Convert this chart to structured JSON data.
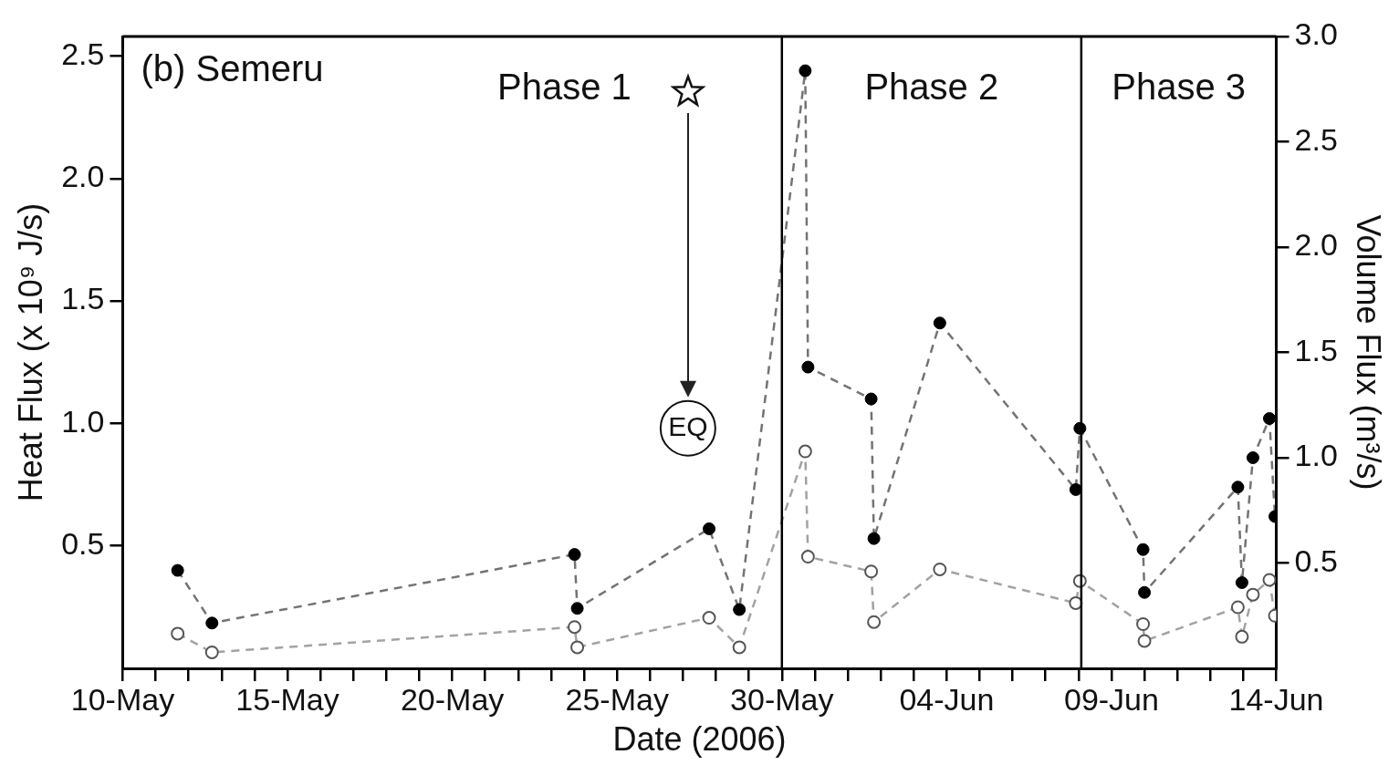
{
  "chart_data": {
    "type": "line",
    "title": "(b) Semeru",
    "xlabel": "Date (2006)",
    "ylabel": "Heat Flux (x 10⁹ J/s)",
    "y2label": "Volume Flux (m³/s)",
    "x": [
      "2006-05-11T16:00",
      "2006-05-12T17:00",
      "2006-05-23T17:00",
      "2006-05-23T19:00",
      "2006-05-27T19:00",
      "2006-05-28T17:00",
      "2006-05-30T17:00",
      "2006-05-30T19:00",
      "2006-06-01T17:00",
      "2006-06-01T19:00",
      "2006-06-03T19:00",
      "2006-06-07T22:00",
      "2006-06-08T01:00",
      "2006-06-09T23:00",
      "2006-06-10T00:00",
      "2006-06-12T20:00",
      "2006-06-12T23:00",
      "2006-06-13T07:00",
      "2006-06-13T19:00",
      "2006-06-13T23:00"
    ],
    "series": [
      {
        "color": "#000000",
        "values": [
          0.4,
          0.185,
          0.465,
          0.245,
          0.57,
          0.24,
          2.44,
          1.23,
          1.1,
          0.53,
          1.41,
          0.73,
          0.98,
          0.485,
          0.31,
          0.74,
          0.35,
          0.86,
          1.02,
          0.62
        ]
      },
      {
        "color": "#555555",
        "axis": "y2",
        "values": [
          0.165,
          0.076,
          0.196,
          0.1,
          0.24,
          0.1,
          1.03,
          0.53,
          0.46,
          0.22,
          0.47,
          0.31,
          0.415,
          0.21,
          0.13,
          0.29,
          0.15,
          0.35,
          0.42,
          0.25
        ]
      }
    ],
    "xlim": [
      "2006-05-10",
      "2006-06-14"
    ],
    "xticks": [
      {
        "value": "2006-05-10",
        "label": "10-May"
      },
      {
        "value": "2006-05-11",
        "label": null
      },
      {
        "value": "2006-05-12",
        "label": null
      },
      {
        "value": "2006-05-13",
        "label": null
      },
      {
        "value": "2006-05-14",
        "label": null
      },
      {
        "value": "2006-05-15",
        "label": "15-May"
      },
      {
        "value": "2006-05-16",
        "label": null
      },
      {
        "value": "2006-05-17",
        "label": null
      },
      {
        "value": "2006-05-18",
        "label": null
      },
      {
        "value": "2006-05-19",
        "label": null
      },
      {
        "value": "2006-05-20",
        "label": "20-May"
      },
      {
        "value": "2006-05-21",
        "label": null
      },
      {
        "value": "2006-05-22",
        "label": null
      },
      {
        "value": "2006-05-23",
        "label": null
      },
      {
        "value": "2006-05-24",
        "label": null
      },
      {
        "value": "2006-05-25",
        "label": "25-May"
      },
      {
        "value": "2006-05-26",
        "label": null
      },
      {
        "value": "2006-05-27",
        "label": null
      },
      {
        "value": "2006-05-28",
        "label": null
      },
      {
        "value": "2006-05-29",
        "label": null
      },
      {
        "value": "2006-05-30",
        "label": "30-May"
      },
      {
        "value": "2006-05-31",
        "label": null
      },
      {
        "value": "2006-06-01",
        "label": null
      },
      {
        "value": "2006-06-02",
        "label": null
      },
      {
        "value": "2006-06-03",
        "label": null
      },
      {
        "value": "2006-06-04",
        "label": "04-Jun"
      },
      {
        "value": "2006-06-05",
        "label": null
      },
      {
        "value": "2006-06-06",
        "label": null
      },
      {
        "value": "2006-06-07",
        "label": null
      },
      {
        "value": "2006-06-08",
        "label": null
      },
      {
        "value": "2006-06-09",
        "label": "09-Jun"
      },
      {
        "value": "2006-06-10",
        "label": null
      },
      {
        "value": "2006-06-11",
        "label": null
      },
      {
        "value": "2006-06-12",
        "label": null
      },
      {
        "value": "2006-06-13",
        "label": null
      },
      {
        "value": "2006-06-14",
        "label": "14-Jun"
      }
    ],
    "ylim": [
      0,
      2.58
    ],
    "yticks": [
      0.5,
      {
        "value": 1,
        "label": "1.0"
      },
      1.5,
      {
        "value": 2,
        "label": "2.0"
      },
      2.5
    ],
    "y2lim": [
      0,
      3
    ],
    "y2ticks": [
      0.5,
      {
        "value": 1,
        "label": "1.0"
      },
      1.5,
      {
        "value": 2,
        "label": "2.0"
      },
      2.5,
      {
        "value": 3,
        "label": "3.0"
      }
    ],
    "ref_lines": [
      {
        "axis": "x",
        "value": "2006-05-30",
        "color": "#000000",
        "line_style": "solid"
      },
      {
        "axis": "x",
        "value": "2006-06-08T02:00",
        "color": "#000000",
        "line_style": "solid"
      }
    ],
    "annotations": [
      "Phase 1",
      "Phase 2",
      "Phase 3",
      "EQ"
    ],
    "marker": "circle",
    "line_style": "dashed",
    "grid": false,
    "legend": false
  }
}
